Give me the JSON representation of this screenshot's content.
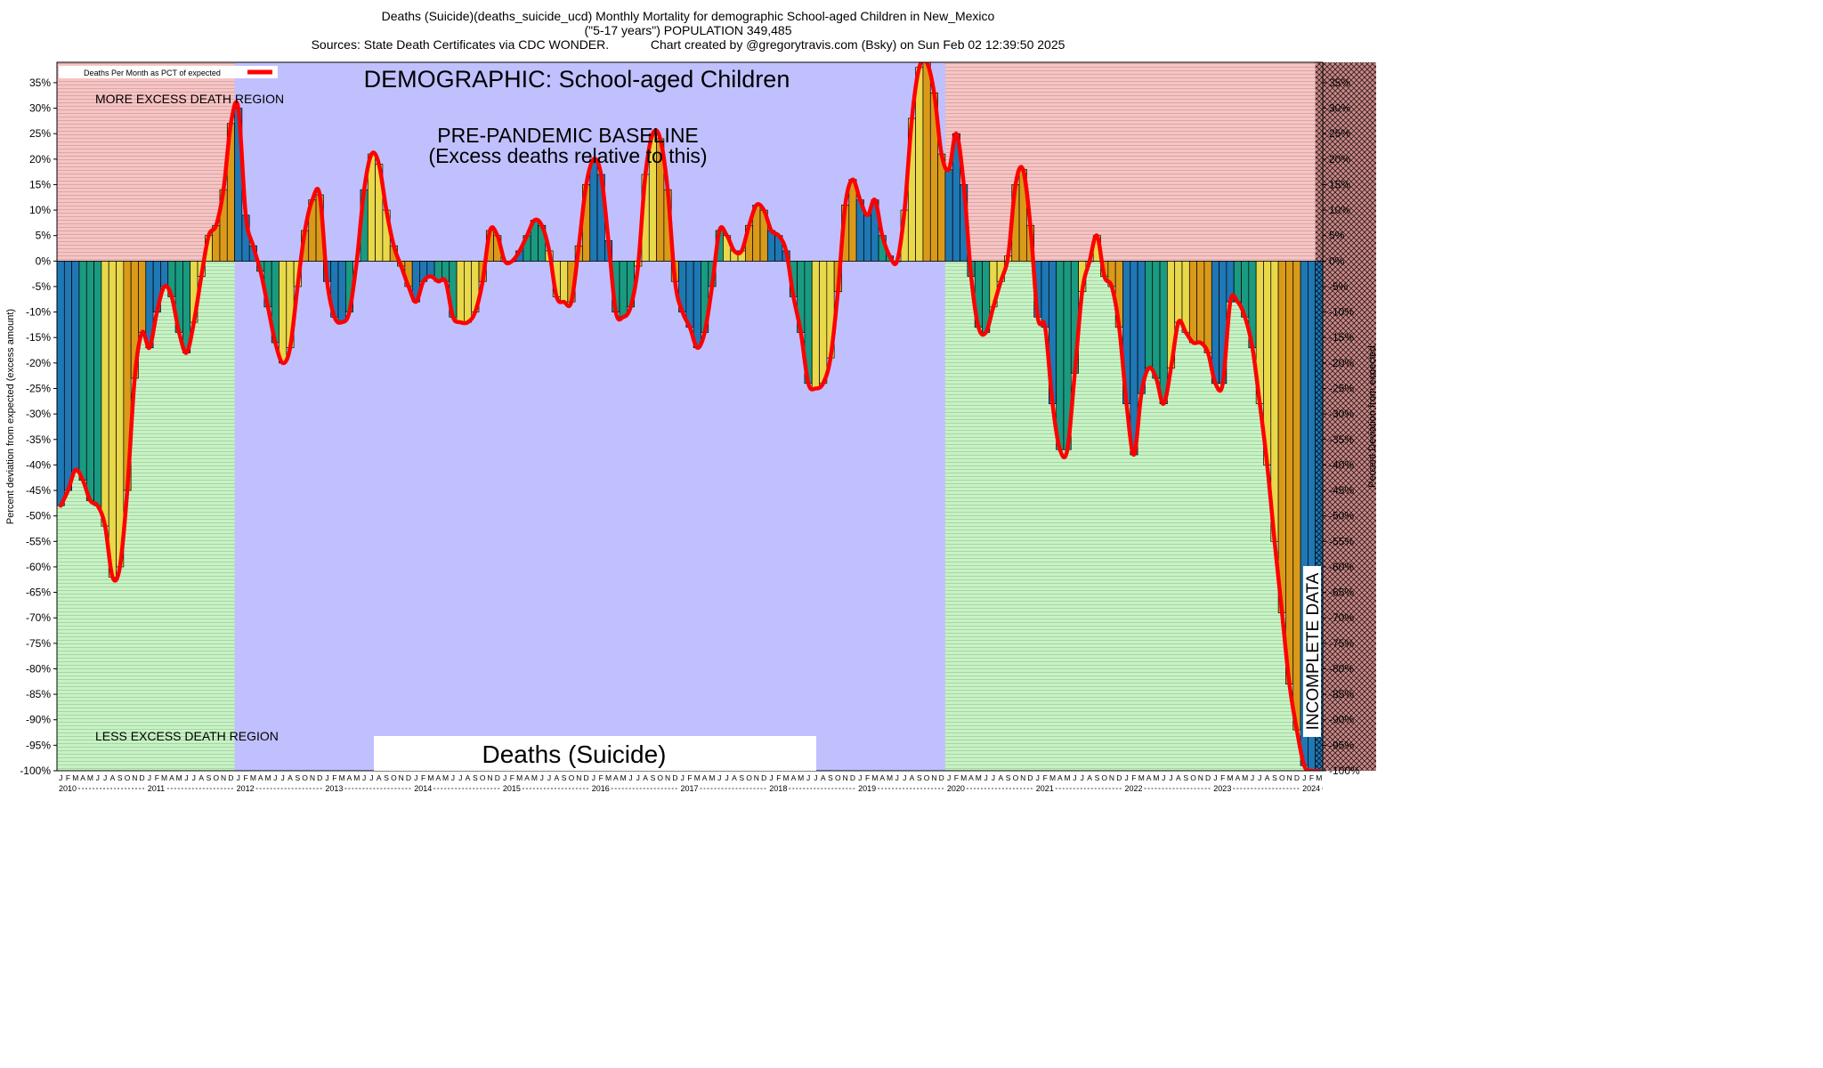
{
  "header": {
    "title_line1": "Deaths (Suicide)(deaths_suicide_ucd) Monthly Mortality for demographic School-aged Children in New_Mexico",
    "title_line2": "(\"5-17 years\") POPULATION 349,485",
    "title_line3_left": "Sources: State Death Certificates via CDC WONDER.",
    "title_line3_right": "Chart created by @gregorytravis.com (Bsky) on Sun Feb 02 12:39:50 2025"
  },
  "colors": {
    "excess_region": "#f7c3c3",
    "less_region": "#c6f3c3",
    "baseline_region": "#c0c0ff",
    "incomplete_region": "#cc8888",
    "line": "#ff0000",
    "bar_palette": [
      "#1f77b4",
      "#1a9a80",
      "#e8d84a",
      "#d99a1a"
    ]
  },
  "chart_data": {
    "type": "bar",
    "title": "DEMOGRAPHIC: School-aged Children",
    "caption": "Deaths (Suicide)",
    "ylabel_left": "Percent deviation from expected (excess amount)",
    "ylabel_right": "Percent Deviation from expected",
    "legend_label": "Deaths Per Month as PCT of expected",
    "legend_position": "top-left",
    "ylim": [
      -100,
      39
    ],
    "yticks": [
      35,
      30,
      25,
      20,
      15,
      10,
      5,
      0,
      -5,
      -10,
      -15,
      -20,
      -25,
      -30,
      -35,
      -40,
      -45,
      -50,
      -55,
      -60,
      -65,
      -70,
      -75,
      -80,
      -85,
      -90,
      -95,
      -100
    ],
    "ytick_labels": [
      "35%",
      "30%",
      "25%",
      "20%",
      "15%",
      "10%",
      "5%",
      "0%",
      "-5%",
      "-10%",
      "-15%",
      "-20%",
      "-25%",
      "-30%",
      "-35%",
      "-40%",
      "-45%",
      "-50%",
      "-55%",
      "-60%",
      "-65%",
      "-70%",
      "-75%",
      "-80%",
      "-85%",
      "-90%",
      "-95%",
      "-100%"
    ],
    "month_letters": [
      "J",
      "F",
      "M",
      "A",
      "M",
      "J",
      "J",
      "A",
      "S",
      "O",
      "N",
      "D"
    ],
    "years": [
      "2010",
      "2011",
      "2012",
      "2013",
      "2014",
      "2015",
      "2016",
      "2017",
      "2018",
      "2019",
      "2020",
      "2021",
      "2022",
      "2023",
      "2024"
    ],
    "regions": [
      {
        "label": "MORE EXCESS DEATH REGION"
      },
      {
        "label": "LESS EXCESS DEATH REGION"
      },
      {
        "label_line1": "PRE-PANDEMIC BASELINE",
        "label_line2": "(Excess deaths relative to this)",
        "start_month_index": 24,
        "end_month_index": 120
      },
      {
        "label": "INCOMPLETE DATA",
        "start_month_index": 170,
        "end_month_index": 180
      }
    ],
    "values": [
      -48,
      -45,
      -41,
      -43,
      -47,
      -48,
      -52,
      -62,
      -60,
      -45,
      -23,
      -14,
      -17,
      -10,
      -5,
      -7,
      -14,
      -18,
      -12,
      -3,
      5,
      7,
      14,
      27,
      30,
      9,
      3,
      -2,
      -9,
      -16,
      -20,
      -17,
      -5,
      6,
      12,
      13,
      -4,
      -11,
      -12,
      -10,
      0,
      14,
      21,
      19,
      10,
      3,
      -1,
      -5,
      -8,
      -4,
      -3,
      -4,
      -4,
      -11,
      -12,
      -12,
      -10,
      -4,
      6,
      5,
      0,
      0,
      2,
      5,
      8,
      7,
      2,
      -7,
      -8,
      -8,
      3,
      15,
      20,
      17,
      4,
      -10,
      -11,
      -9,
      -1,
      17,
      25,
      24,
      14,
      -4,
      -10,
      -13,
      -17,
      -14,
      -5,
      6,
      5,
      2,
      2,
      7,
      11,
      10,
      6,
      5,
      2,
      -7,
      -14,
      -24,
      -25,
      -24,
      -19,
      -6,
      11,
      16,
      12,
      9,
      12,
      5,
      1,
      0,
      10,
      28,
      38,
      39,
      33,
      21,
      18,
      25,
      15,
      -3,
      -13,
      -14,
      -9,
      -4,
      1,
      15,
      18,
      7,
      -11,
      -13,
      -28,
      -37,
      -37,
      -22,
      -6,
      0,
      5,
      -3,
      -5,
      -13,
      -28,
      -38,
      -26,
      -21,
      -23,
      -28,
      -21,
      -12,
      -14,
      -16,
      -16,
      -18,
      -24,
      -24,
      -8,
      -8,
      -11,
      -17,
      -28,
      -40,
      -55,
      -69,
      -83,
      -92,
      -99,
      -100,
      -100
    ]
  }
}
